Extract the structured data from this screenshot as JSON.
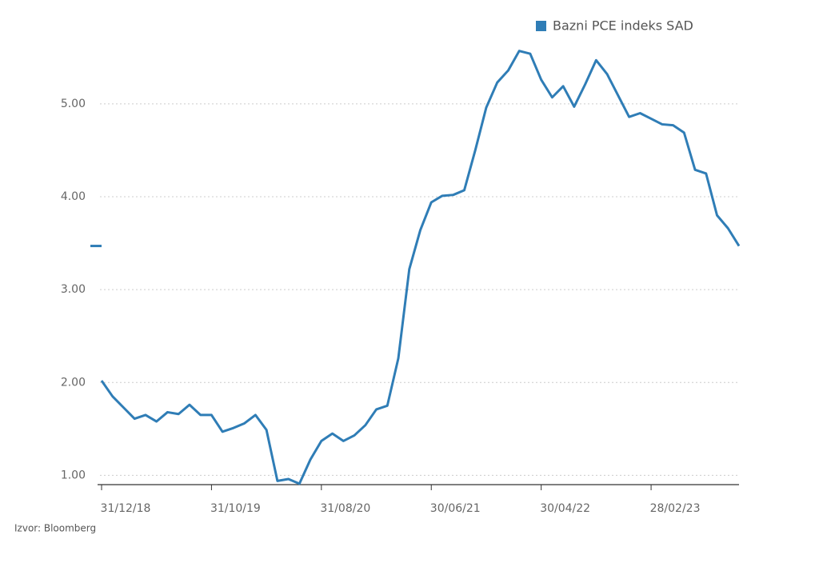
{
  "chart_data": {
    "type": "line",
    "source": "Izvor: Bloomberg",
    "categories": [
      "31/12/18",
      null,
      null,
      null,
      null,
      null,
      null,
      null,
      null,
      null,
      "31/10/19",
      null,
      null,
      null,
      null,
      null,
      null,
      null,
      null,
      null,
      "31/08/20",
      null,
      null,
      null,
      null,
      null,
      null,
      null,
      null,
      null,
      "30/06/21",
      null,
      null,
      null,
      null,
      null,
      null,
      null,
      null,
      null,
      "30/04/22",
      null,
      null,
      null,
      null,
      null,
      null,
      null,
      null,
      null,
      "28/02/23",
      null,
      null,
      null,
      null,
      null,
      null,
      null,
      null
    ],
    "series": [
      {
        "name": "Bazni PCE indeks SAD",
        "color": "#2f7db6",
        "values": [
          2.02,
          1.85,
          1.73,
          1.61,
          1.65,
          1.58,
          1.68,
          1.66,
          1.76,
          1.65,
          1.65,
          1.47,
          1.51,
          1.56,
          1.65,
          1.49,
          0.94,
          0.96,
          0.91,
          1.17,
          1.37,
          1.45,
          1.37,
          1.43,
          1.54,
          1.71,
          1.75,
          2.26,
          3.22,
          3.64,
          3.94,
          4.01,
          4.02,
          4.07,
          4.5,
          4.96,
          5.23,
          5.36,
          5.57,
          5.54,
          5.26,
          5.07,
          5.19,
          4.97,
          5.21,
          5.47,
          5.32,
          5.09,
          4.86,
          4.9,
          4.84,
          4.78,
          4.77,
          4.69,
          4.29,
          4.25,
          3.8,
          3.66,
          3.47
        ]
      }
    ],
    "ylim": [
      0.9,
      5.7
    ],
    "yticks": [
      {
        "value": 1,
        "label": "1.00"
      },
      {
        "value": 2,
        "label": "2.00"
      },
      {
        "value": 3,
        "label": "3.00"
      },
      {
        "value": 4,
        "label": "4.00"
      },
      {
        "value": 5,
        "label": "5.00"
      }
    ],
    "grid": true,
    "legend": "top-right"
  }
}
